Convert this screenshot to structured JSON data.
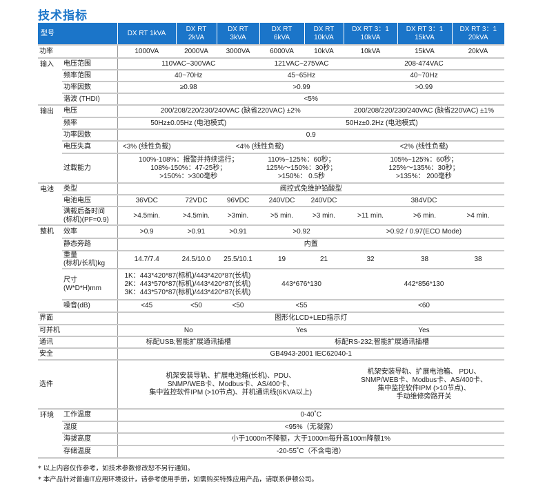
{
  "title": "技术指标",
  "header": {
    "label": "型号",
    "models": [
      "DX RT 1kVA",
      "DX RT\n2kVA",
      "DX RT\n3kVA",
      "DX RT\n6kVA",
      "DX RT\n10kVA",
      "DX RT 3：1\n10kVA",
      "DX RT 3：1\n15kVA",
      "DX RT 3：1\n20kVA"
    ]
  },
  "accent_color": "#1b75c9",
  "sections": [
    {
      "group": "功率",
      "rows": [
        {
          "label": "",
          "cells": [
            {
              "text": "1000VA",
              "span": 1
            },
            {
              "text": "2000VA",
              "span": 1
            },
            {
              "text": "3000VA",
              "span": 1
            },
            {
              "text": "6000VA",
              "span": 1
            },
            {
              "text": "10kVA",
              "span": 1
            },
            {
              "text": "10kVA",
              "span": 1
            },
            {
              "text": "15kVA",
              "span": 1
            },
            {
              "text": "20kVA",
              "span": 1
            }
          ]
        }
      ]
    },
    {
      "group": "输入",
      "rows": [
        {
          "label": "电压范围",
          "cells": [
            {
              "text": "110VAC~300VAC",
              "span": 3
            },
            {
              "text": "121VAC~275VAC",
              "span": 2
            },
            {
              "text": "208-474VAC",
              "span": 3
            }
          ]
        },
        {
          "label": "频率范围",
          "cells": [
            {
              "text": "40~70Hz",
              "span": 3
            },
            {
              "text": "45~65Hz",
              "span": 2
            },
            {
              "text": "40~70Hz",
              "span": 3
            }
          ]
        },
        {
          "label": "功率因数",
          "cells": [
            {
              "text": "≥0.98",
              "span": 3
            },
            {
              "text": ">0.99",
              "span": 2
            },
            {
              "text": ">0.99",
              "span": 3
            }
          ]
        },
        {
          "label": "谐波 (THDI)",
          "cells": [
            {
              "text": "<5%",
              "span": 8
            }
          ]
        }
      ]
    },
    {
      "group": "输出",
      "rows": [
        {
          "label": "电压",
          "cells": [
            {
              "text": "200/208/220/230/240VAC (缺省220VAC) ±2%",
              "span": 5
            },
            {
              "text": "200/208/220/230/240VAC (缺省220VAC) ±1%",
              "span": 3
            }
          ]
        },
        {
          "label": "频率",
          "cells": [
            {
              "text": "50Hz±0.05Hz (电池模式)",
              "span": 3
            },
            {
              "text": "50Hz±0.2Hz (电池模式)",
              "span": 5
            }
          ]
        },
        {
          "label": "功率因数",
          "cells": [
            {
              "text": "0.9",
              "span": 8
            }
          ]
        },
        {
          "label": "电压失真",
          "cells": [
            {
              "text": "<3% (线性负载)",
              "span": 1
            },
            {
              "text": "<4% (线性负载)",
              "span": 4
            },
            {
              "text": "<2% (线性负载)",
              "span": 3
            }
          ]
        },
        {
          "label": "过载能力",
          "cells": [
            {
              "text": "100%-108%：报警并持续运行；\n108%-150%：47-25秒；\n>150%：>300毫秒",
              "span": 3
            },
            {
              "text": "110%~125%：60秒；\n125%～150%：30秒；\n>150%： 0.5秒",
              "span": 2
            },
            {
              "text": "105%~125%：60秒；\n125%～135%：30秒；\n>135%： 200毫秒",
              "span": 3
            }
          ]
        }
      ]
    },
    {
      "group": "电池",
      "rows": [
        {
          "label": "类型",
          "cells": [
            {
              "text": "阀控式免维护铅酸型",
              "span": 8
            }
          ]
        },
        {
          "label": "电池电压",
          "cells": [
            {
              "text": "36VDC",
              "span": 1
            },
            {
              "text": "72VDC",
              "span": 1
            },
            {
              "text": "96VDC",
              "span": 1
            },
            {
              "text": "240VDC",
              "span": 1
            },
            {
              "text": "240VDC",
              "span": 1
            },
            {
              "text": "384VDC",
              "span": 3
            }
          ]
        },
        {
          "label": "满载后备时间\n(标机)(PF=0.9)",
          "cells": [
            {
              "text": ">4.5min.",
              "span": 1
            },
            {
              "text": ">4.5min.",
              "span": 1
            },
            {
              "text": ">3min.",
              "span": 1
            },
            {
              "text": ">5 min.",
              "span": 1
            },
            {
              "text": ">3 min.",
              "span": 1
            },
            {
              "text": ">11 min.",
              "span": 1
            },
            {
              "text": ">6 min.",
              "span": 1
            },
            {
              "text": ">4 min.",
              "span": 1
            }
          ]
        }
      ]
    },
    {
      "group": "整机",
      "rows": [
        {
          "label": "效率",
          "cells": [
            {
              "text": ">0.9",
              "span": 1
            },
            {
              "text": ">0.91",
              "span": 1
            },
            {
              "text": ">0.91",
              "span": 1
            },
            {
              "text": ">0.92",
              "span": 2
            },
            {
              "text": ">0.92 / 0.97(ECO Mode)",
              "span": 3
            }
          ]
        },
        {
          "label": "静态旁路",
          "cells": [
            {
              "text": "内置",
              "span": 8
            }
          ]
        },
        {
          "label": "重量\n(标机/长机)kg",
          "cells": [
            {
              "text": "14.7/7.4",
              "span": 1
            },
            {
              "text": "24.5/10.0",
              "span": 1
            },
            {
              "text": "25.5/10.1",
              "span": 1
            },
            {
              "text": "19",
              "span": 1
            },
            {
              "text": "21",
              "span": 1
            },
            {
              "text": "32",
              "span": 1
            },
            {
              "text": "38",
              "span": 1
            },
            {
              "text": "38",
              "span": 1
            }
          ]
        },
        {
          "label": "尺寸\n(W*D*H)mm",
          "cells": [
            {
              "text": "1K：443*420*87(标机)/443*420*87(长机)\n2K：443*570*87(标机)/443*420*87(长机)\n3K：443*570*87(标机)/443*420*87(长机)",
              "span": 3,
              "align": "left"
            },
            {
              "text": "443*676*130",
              "span": 2
            },
            {
              "text": "442*856*130",
              "span": 3
            }
          ]
        },
        {
          "label": "噪音(dB)",
          "cells": [
            {
              "text": "<45",
              "span": 1
            },
            {
              "text": "<50",
              "span": 1
            },
            {
              "text": "<50",
              "span": 1
            },
            {
              "text": "<55",
              "span": 2
            },
            {
              "text": "<60",
              "span": 3
            }
          ]
        }
      ]
    },
    {
      "group": "界面",
      "rows": [
        {
          "label": "",
          "cells": [
            {
              "text": "图形化LCD+LED指示灯",
              "span": 8
            }
          ]
        }
      ]
    },
    {
      "group": "可并机",
      "rows": [
        {
          "label": "",
          "cells": [
            {
              "text": "No",
              "span": 3
            },
            {
              "text": "Yes",
              "span": 2
            },
            {
              "text": "Yes",
              "span": 3
            }
          ]
        }
      ]
    },
    {
      "group": "通讯",
      "rows": [
        {
          "label": "",
          "cells": [
            {
              "text": "标配USB;智能扩展通讯插槽",
              "span": 3
            },
            {
              "text": "标配RS-232;智能扩展通讯插槽",
              "span": 5
            }
          ]
        }
      ]
    },
    {
      "group": "安全",
      "rows": [
        {
          "label": "",
          "cells": [
            {
              "text": "GB4943-2001    IEC62040-1",
              "span": 8
            }
          ]
        }
      ]
    },
    {
      "group": "选件",
      "rows": [
        {
          "label": "",
          "cells": [
            {
              "text": "机架安装导轨、扩展电池箱(长机)、PDU、\nSNMP/WEB卡、Modbus卡、AS/400卡、\n集中监控软件IPM (>10节点)、并机通讯线(6KVA以上)",
              "span": 5
            },
            {
              "text": "机架安装导轨、扩展电池箱、 PDU、\nSNMP/WEB卡、Modbus卡、AS/400卡、\n集中监控软件IPM (>10节点)、\n手动维修旁路开关",
              "span": 3
            }
          ]
        }
      ]
    },
    {
      "group": "环境",
      "rows": [
        {
          "label": "工作温度",
          "cells": [
            {
              "text": "0-40˚C",
              "span": 8
            }
          ]
        },
        {
          "label": "湿度",
          "cells": [
            {
              "text": "<95%（无凝露）",
              "span": 8
            }
          ]
        },
        {
          "label": "海拔高度",
          "cells": [
            {
              "text": "小于1000m不降额，大于1000m每升高100m降额1%",
              "span": 8
            }
          ]
        },
        {
          "label": "存储温度",
          "cells": [
            {
              "text": "-20-55˚C（不含电池）",
              "span": 8
            }
          ]
        }
      ]
    }
  ],
  "footnotes": [
    "* 以上内容仅作参考，如技术参数修改恕不另行通知。",
    "* 本产品针对普遍IT应用环境设计，请参考使用手册，如需购买特殊应用产品，请联系伊顿公司。"
  ]
}
